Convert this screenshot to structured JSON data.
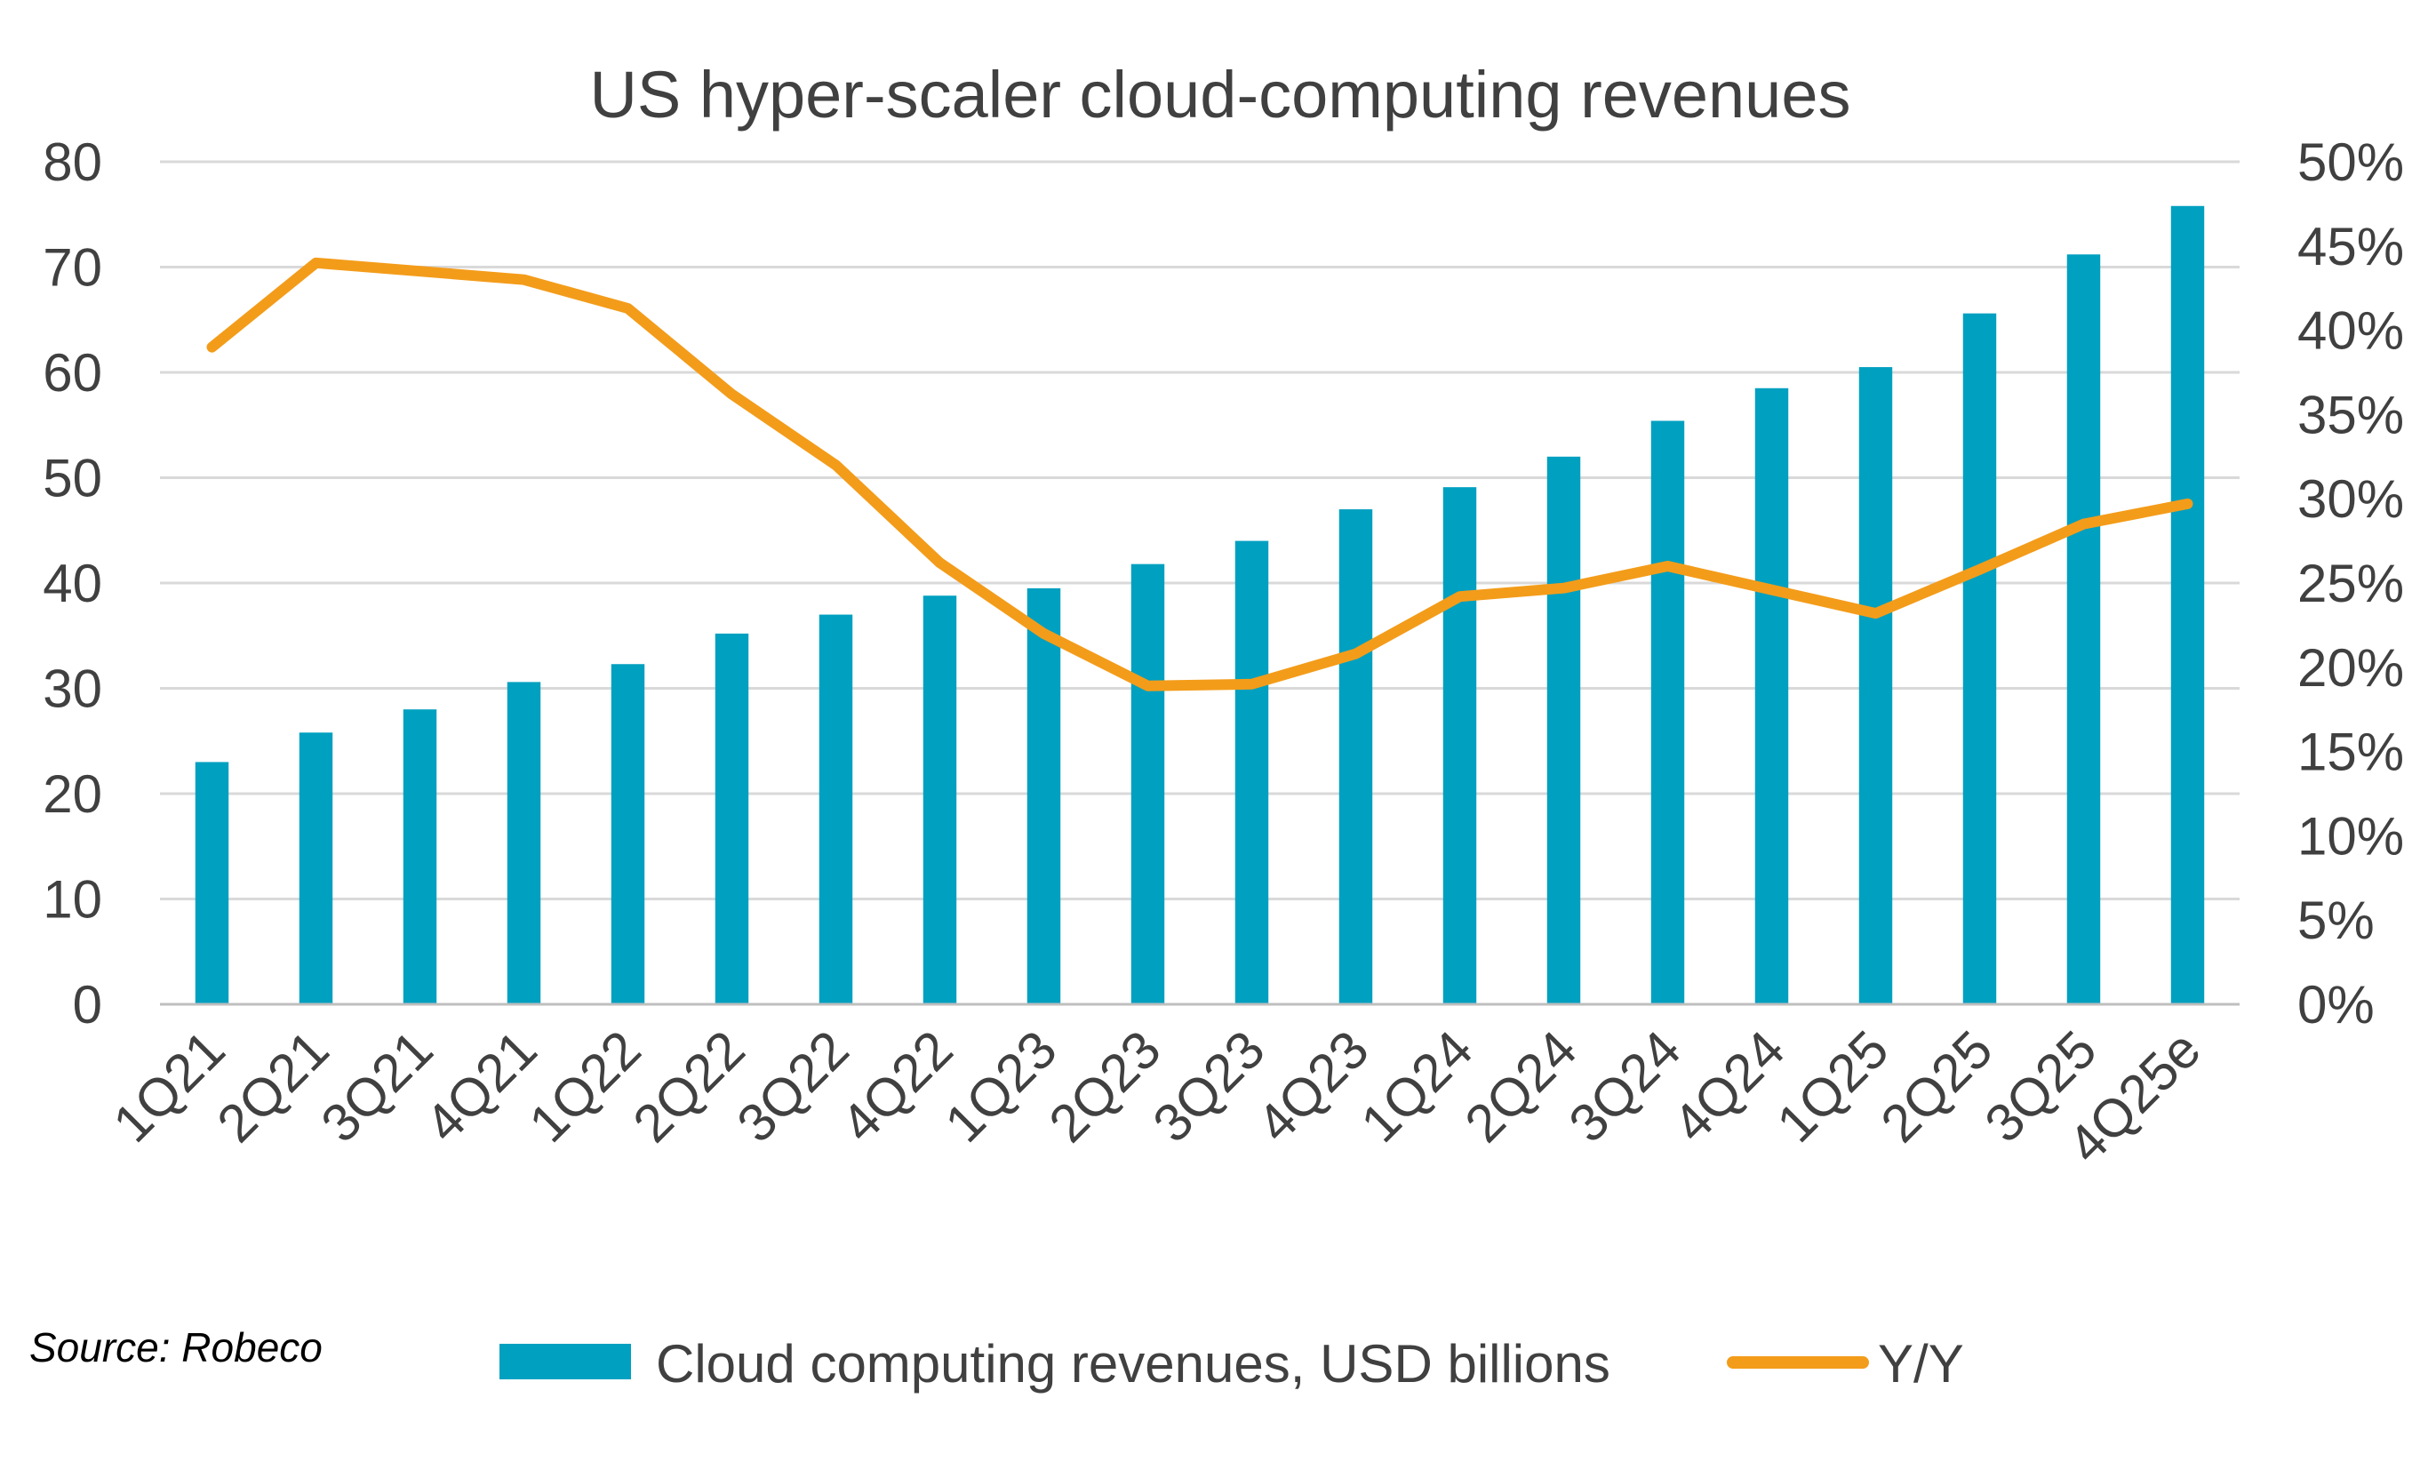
{
  "chart_data": {
    "type": "bar",
    "title": "US hyper-scaler cloud-computing revenues",
    "categories": [
      "1Q21",
      "2Q21",
      "3Q21",
      "4Q21",
      "1Q22",
      "2Q22",
      "3Q22",
      "4Q22",
      "1Q23",
      "2Q23",
      "3Q23",
      "4Q23",
      "1Q24",
      "2Q24",
      "3Q24",
      "4Q24",
      "1Q25",
      "2Q25",
      "3Q25",
      "4Q25e"
    ],
    "series": [
      {
        "name": "Cloud computing revenues, USD billions",
        "type": "bar",
        "axis": "left",
        "color": "#00a0c0",
        "values": [
          23,
          25.8,
          28,
          30.6,
          32.3,
          35.2,
          37,
          38.8,
          39.5,
          41.8,
          44,
          47,
          49.1,
          52,
          55.4,
          58.5,
          60.5,
          65.6,
          71.2,
          75.8
        ]
      },
      {
        "name": "Y/Y",
        "type": "line",
        "axis": "right",
        "color": "#f39c1a",
        "values": [
          0.39,
          0.44,
          0.435,
          0.43,
          0.413,
          0.362,
          0.32,
          0.262,
          0.22,
          0.189,
          0.19,
          0.208,
          0.242,
          0.247,
          0.26,
          0.246,
          0.232,
          0.258,
          0.285,
          0.297
        ]
      }
    ],
    "ylim_left": [
      0,
      80
    ],
    "ylim_right": [
      0,
      0.5
    ],
    "left_ticks": [
      "0",
      "10",
      "20",
      "30",
      "40",
      "50",
      "60",
      "70",
      "80"
    ],
    "right_ticks": [
      "0%",
      "5%",
      "10%",
      "15%",
      "20%",
      "25%",
      "30%",
      "35%",
      "40%",
      "45%",
      "50%"
    ],
    "grid": true,
    "legend_position": "bottom",
    "source": "Source: Robeco",
    "gridline_color": "#d9d9d9"
  }
}
